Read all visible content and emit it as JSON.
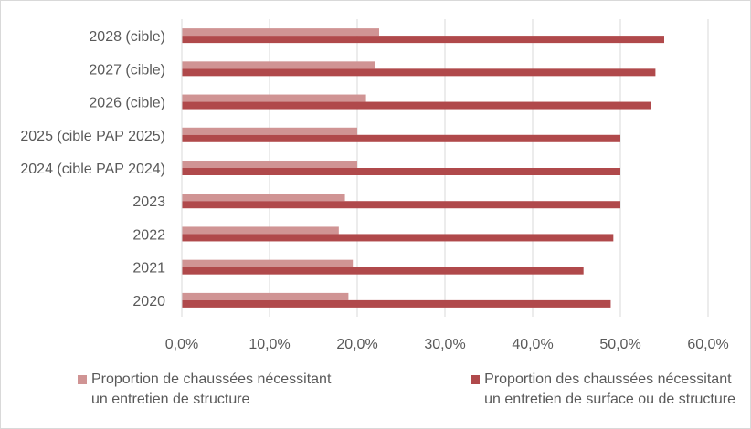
{
  "chart_data": {
    "type": "bar",
    "orientation": "horizontal",
    "categories": [
      "2028 (cible)",
      "2027 (cible)",
      "2026 (cible)",
      "2025 (cible PAP 2025)",
      "2024 (cible PAP 2024)",
      "2023",
      "2022",
      "2021",
      "2020"
    ],
    "series": [
      {
        "name": "Proportion de chaussées nécessitant\nun entretien de structure",
        "color": "#d09494",
        "values": [
          22.5,
          22.0,
          21.0,
          20.0,
          20.0,
          18.6,
          17.9,
          19.5,
          19.0
        ]
      },
      {
        "name": "Proportion des chaussées nécessitant\nun entretien de surface ou de structure",
        "color": "#b0494b",
        "values": [
          55.0,
          54.0,
          53.5,
          50.0,
          50.0,
          50.0,
          49.2,
          45.8,
          48.9
        ]
      }
    ],
    "xlim": [
      0,
      60
    ],
    "xticks": [
      0,
      10,
      20,
      30,
      40,
      50,
      60
    ],
    "xtick_labels": [
      "0,0%",
      "10,0%",
      "20,0%",
      "30,0%",
      "40,0%",
      "50,0%",
      "60,0%"
    ],
    "grid": "vertical",
    "legend_position": "bottom",
    "title": "",
    "xlabel": "",
    "ylabel": ""
  }
}
